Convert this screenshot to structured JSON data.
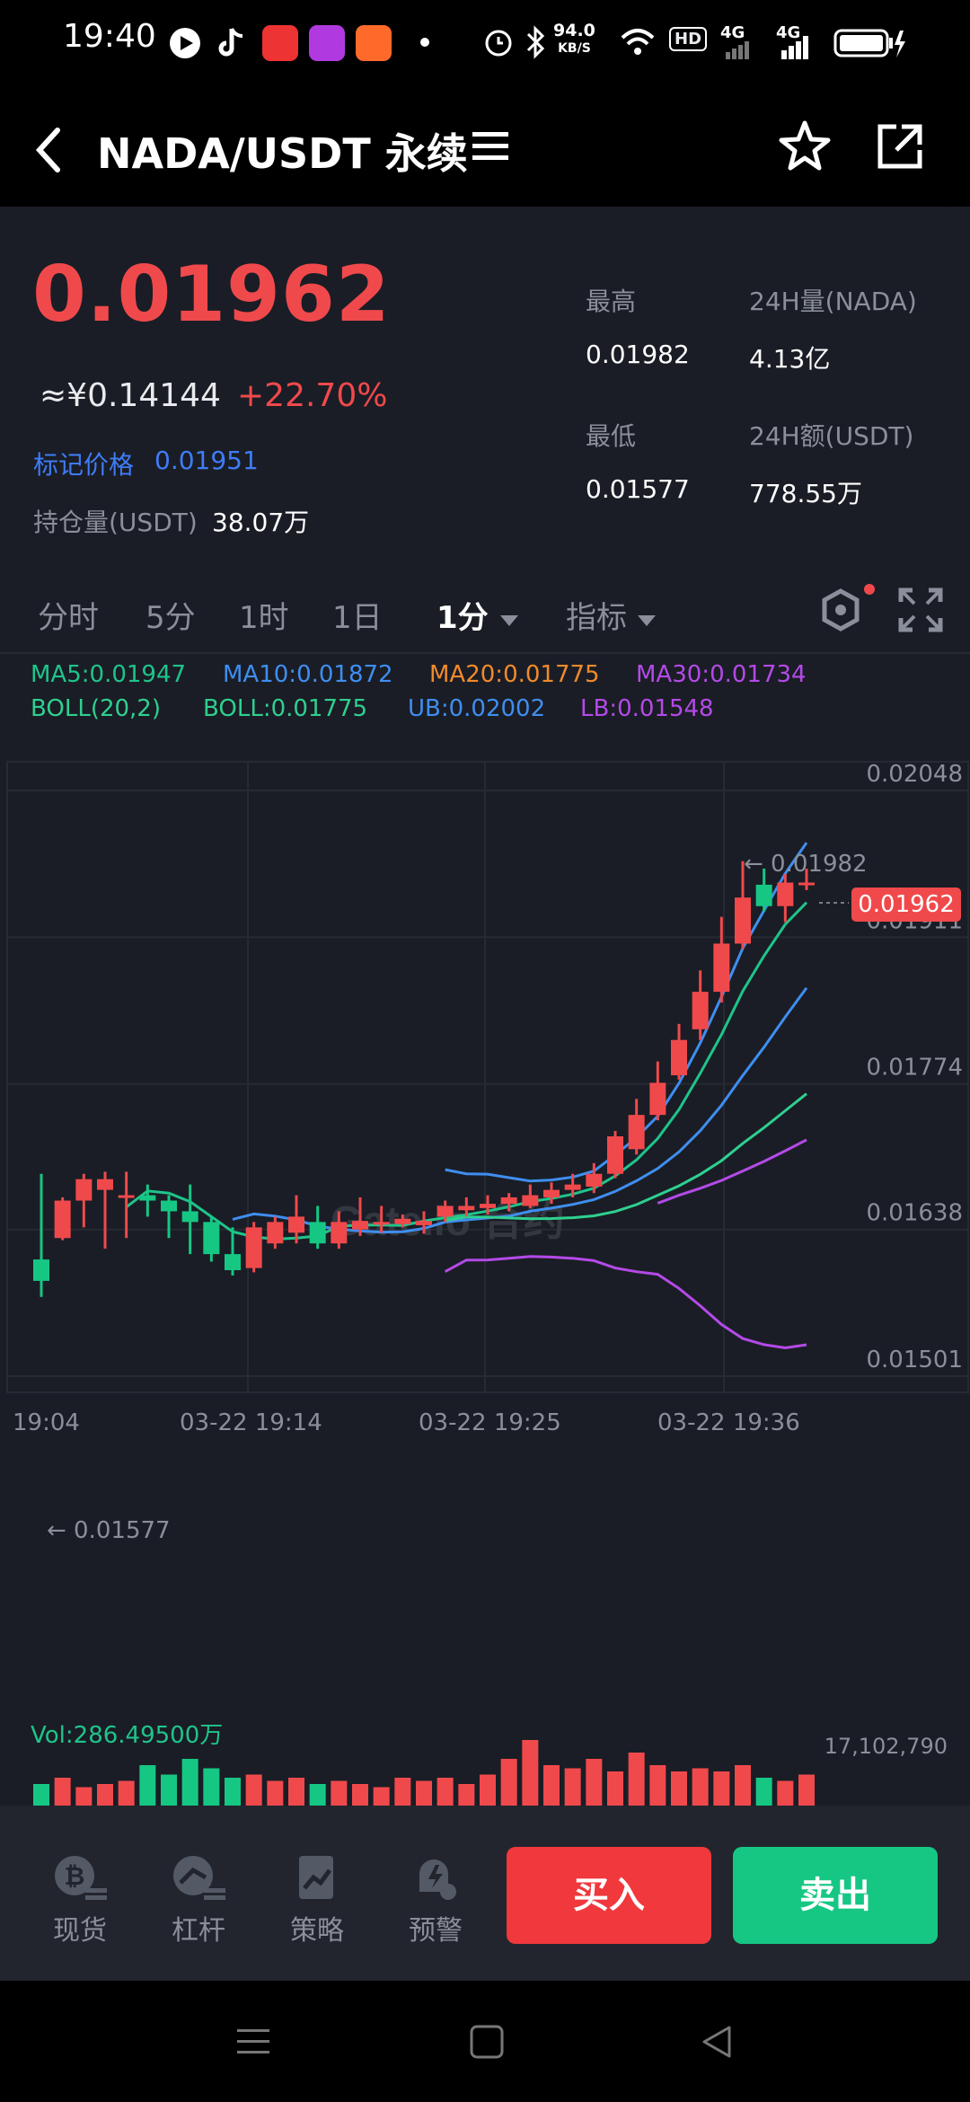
{
  "status_bar": {
    "time": "19:40",
    "net_speed": "94.0",
    "net_unit": "KB/S",
    "hd_badge": "HD",
    "signal1": "4G",
    "signal2": "4G"
  },
  "header": {
    "title": "NADA/USDT 永续",
    "back_icon": "chevron-left-icon",
    "menu_icon": "menu-icon",
    "favorite_icon": "star-icon",
    "share_icon": "share-icon"
  },
  "ticker": {
    "last_price": "0.01962",
    "cny_price": "≈¥0.14144",
    "change_pct": "+22.70%",
    "mark_label": "标记价格",
    "mark_value": "0.01951",
    "open_interest_label": "持仓量(USDT)",
    "open_interest_value": "38.07万",
    "high_label": "最高",
    "high_value": "0.01982",
    "low_label": "最低",
    "low_value": "0.01577",
    "vol_label": "24H量(NADA)",
    "vol_value": "4.13亿",
    "amount_label": "24H额(USDT)",
    "amount_value": "778.55万"
  },
  "tabs": [
    {
      "label": "分时"
    },
    {
      "label": "5分"
    },
    {
      "label": "1时"
    },
    {
      "label": "1日"
    },
    {
      "label": "1分"
    },
    {
      "label": "指标"
    }
  ],
  "indicators": {
    "ma5": "MA5:0.01947",
    "ma10": "MA10:0.01872",
    "ma20": "MA20:0.01775",
    "ma30": "MA30:0.01734",
    "boll": "BOLL(20,2)",
    "boll_mid": "BOLL:0.01775",
    "ub": "UB:0.02002",
    "lb": "LB:0.01548"
  },
  "colors": {
    "up": "#f0494c",
    "down": "#16c784",
    "ma5": "#1fc48a",
    "ma10": "#3f8ef0",
    "ma20": "#f08a2c",
    "ma30": "#b44ae8",
    "boll_mid": "#2ed08f",
    "ub": "#3f8ef0",
    "lb": "#b44ae8"
  },
  "chart_data": {
    "type": "candlestick",
    "x_ticks": [
      "19:04",
      "03-22 19:14",
      "03-22 19:25",
      "03-22 19:36"
    ],
    "y_ticks": [
      "0.02048",
      "0.01911",
      "0.01774",
      "0.01638",
      "0.01501"
    ],
    "ylim": [
      0.01501,
      0.02048
    ],
    "current_price_tag": "0.01962",
    "max_label": "← 0.01982",
    "min_label": "← 0.01577",
    "watermark": "Gate.io 合约",
    "candles": [
      [
        0.0161,
        0.0159,
        0.0169,
        0.01575
      ],
      [
        0.0163,
        0.01665,
        0.01668,
        0.01628
      ],
      [
        0.01665,
        0.01685,
        0.0169,
        0.0164
      ],
      [
        0.01675,
        0.01685,
        0.01692,
        0.0162
      ],
      [
        0.0167,
        0.0167,
        0.01692,
        0.0163
      ],
      [
        0.0167,
        0.01665,
        0.0168,
        0.0165
      ],
      [
        0.01665,
        0.01655,
        0.0167,
        0.0163
      ],
      [
        0.01655,
        0.01645,
        0.0168,
        0.01615
      ],
      [
        0.01645,
        0.01615,
        0.0165,
        0.01608
      ],
      [
        0.01615,
        0.016,
        0.0164,
        0.01595
      ],
      [
        0.01602,
        0.0164,
        0.01645,
        0.01598
      ],
      [
        0.01625,
        0.01645,
        0.0165,
        0.0162
      ],
      [
        0.01635,
        0.0165,
        0.0167,
        0.01625
      ],
      [
        0.01645,
        0.01625,
        0.0166,
        0.0162
      ],
      [
        0.01625,
        0.01645,
        0.01655,
        0.0162
      ],
      [
        0.01638,
        0.01646,
        0.01668,
        0.01632
      ],
      [
        0.01643,
        0.01645,
        0.0166,
        0.01635
      ],
      [
        0.01643,
        0.01648,
        0.01652,
        0.0164
      ],
      [
        0.01642,
        0.01646,
        0.01655,
        0.01634
      ],
      [
        0.0165,
        0.0166,
        0.01665,
        0.01645
      ],
      [
        0.01656,
        0.0166,
        0.01668,
        0.0165
      ],
      [
        0.01658,
        0.01662,
        0.0167,
        0.01652
      ],
      [
        0.01662,
        0.01668,
        0.01672,
        0.01655
      ],
      [
        0.0166,
        0.0167,
        0.0168,
        0.01658
      ],
      [
        0.01668,
        0.01675,
        0.01682,
        0.01662
      ],
      [
        0.01675,
        0.0168,
        0.0169,
        0.01668
      ],
      [
        0.01678,
        0.0169,
        0.017,
        0.01672
      ],
      [
        0.0169,
        0.01725,
        0.0173,
        0.01686
      ],
      [
        0.01713,
        0.01745,
        0.0176,
        0.01708
      ],
      [
        0.01745,
        0.01775,
        0.01795,
        0.0174
      ],
      [
        0.01782,
        0.01815,
        0.0183,
        0.01778
      ],
      [
        0.01825,
        0.0186,
        0.0188,
        0.01815
      ],
      [
        0.0186,
        0.01905,
        0.0193,
        0.0185
      ],
      [
        0.01905,
        0.01948,
        0.01982,
        0.019
      ],
      [
        0.0196,
        0.0194,
        0.01975,
        0.01935
      ],
      [
        0.0194,
        0.01962,
        0.0197,
        0.01925
      ],
      [
        0.01962,
        0.01962,
        0.01975,
        0.01955
      ]
    ],
    "volume_label": "Vol:286.49500万",
    "volume_max_label": "17,102,790"
  },
  "bottom_nav": [
    {
      "label": "现货",
      "icon": "spot-icon"
    },
    {
      "label": "杠杆",
      "icon": "margin-icon"
    },
    {
      "label": "策略",
      "icon": "strategy-icon"
    },
    {
      "label": "预警",
      "icon": "alert-icon"
    }
  ],
  "actions": {
    "buy": "买入",
    "sell": "卖出"
  }
}
